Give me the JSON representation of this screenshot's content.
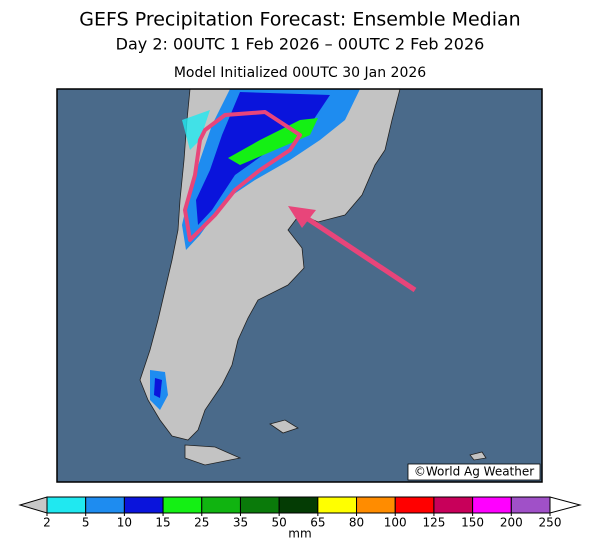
{
  "header": {
    "title": "GEFS Precipitation Forecast: Ensemble Median",
    "subtitle": "Day 2: 00UTC 1 Feb 2026 – 00UTC 2 Feb 2026",
    "initialized": "Model Initialized 00UTC 30 Jan 2026"
  },
  "map": {
    "credit": "©World Ag Weather"
  },
  "colorbar": {
    "ticks": [
      2,
      5,
      10,
      15,
      25,
      35,
      50,
      65,
      80,
      100,
      125,
      150,
      200,
      250
    ],
    "colors": [
      "#20e8f0",
      "#1e8cf0",
      "#0a14dc",
      "#14f014",
      "#10b410",
      "#0a7a0a",
      "#043c04",
      "#ffff00",
      "#ff8c00",
      "#ff0000",
      "#c8005a",
      "#ff00ff",
      "#a050c8"
    ],
    "under_color": "#c8c8c8",
    "over_color": "#ffffff",
    "unit": "mm"
  }
}
